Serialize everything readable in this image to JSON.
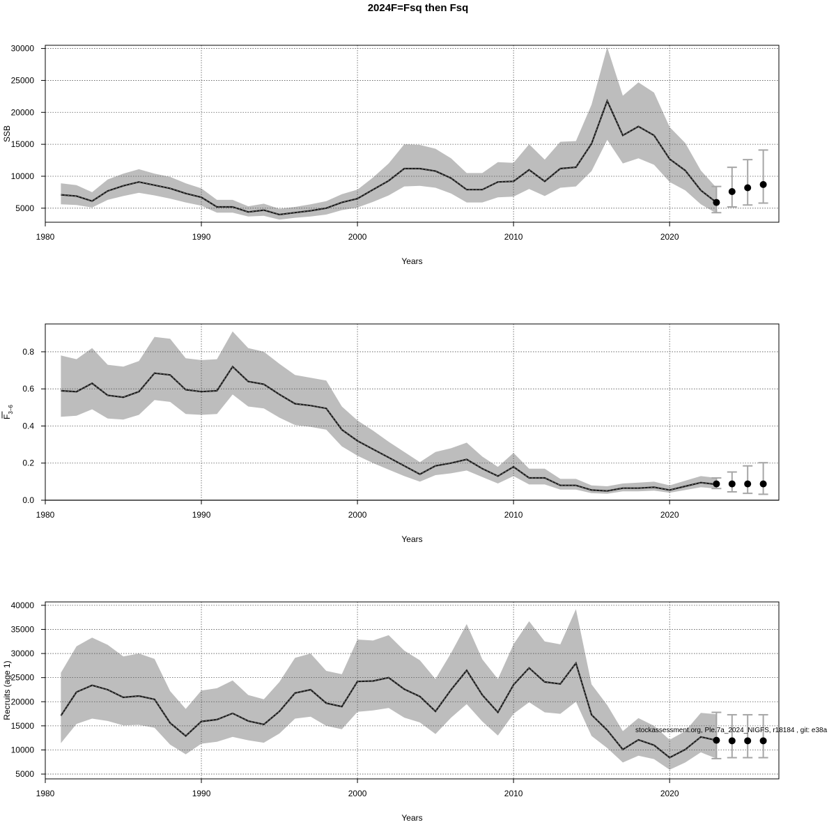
{
  "title": "2024F=Fsq then Fsq",
  "footnote": "stockassessment.org, Ple.7a_2024_NIGFS, r18184 , git: e38a",
  "chart_data": [
    {
      "type": "area",
      "panel": "ssb",
      "title": "",
      "xlabel": "Years",
      "ylabel": "SSB",
      "xlim": [
        1980,
        2027
      ],
      "ylim": [
        2800,
        30500
      ],
      "xticks": [
        1980,
        1990,
        2000,
        2010,
        2020
      ],
      "yticks": [
        5000,
        10000,
        15000,
        20000,
        25000,
        30000
      ],
      "grid": true,
      "x": [
        1981,
        1982,
        1983,
        1984,
        1985,
        1986,
        1987,
        1988,
        1989,
        1990,
        1991,
        1992,
        1993,
        1994,
        1995,
        1996,
        1997,
        1998,
        1999,
        2000,
        2001,
        2002,
        2003,
        2004,
        2005,
        2006,
        2007,
        2008,
        2009,
        2010,
        2011,
        2012,
        2013,
        2014,
        2015,
        2016,
        2017,
        2018,
        2019,
        2020,
        2021,
        2022,
        2023
      ],
      "estimate": [
        7100,
        6900,
        6100,
        7700,
        8500,
        9100,
        8600,
        8100,
        7300,
        6700,
        5200,
        5200,
        4400,
        4700,
        4000,
        4300,
        4600,
        5000,
        5900,
        6500,
        7900,
        9300,
        11200,
        11200,
        10800,
        9700,
        7900,
        7900,
        9100,
        9200,
        11000,
        9200,
        11200,
        11400,
        15100,
        21800,
        16400,
        17800,
        16400,
        12700,
        10900,
        7800,
        5900
      ],
      "lower": [
        5600,
        5500,
        5100,
        6300,
        6900,
        7400,
        7000,
        6500,
        5900,
        5400,
        4300,
        4300,
        3700,
        3800,
        3200,
        3500,
        3700,
        4000,
        4700,
        5100,
        6000,
        7000,
        8400,
        8500,
        8200,
        7300,
        5900,
        5900,
        6700,
        6800,
        8000,
        6900,
        8200,
        8400,
        10800,
        15700,
        12000,
        12800,
        11800,
        9100,
        7800,
        5600,
        4200
      ],
      "upper": [
        8900,
        8600,
        7500,
        9500,
        10400,
        11100,
        10400,
        9900,
        8900,
        8100,
        6300,
        6300,
        5300,
        5700,
        4900,
        5200,
        5600,
        6100,
        7200,
        7900,
        9800,
        12000,
        15000,
        14900,
        14300,
        12800,
        10500,
        10500,
        12200,
        12100,
        15000,
        12600,
        15400,
        15500,
        21200,
        30200,
        22600,
        24700,
        23100,
        17700,
        15200,
        10900,
        8200
      ],
      "forecast": {
        "x": [
          2023,
          2024,
          2025,
          2026
        ],
        "median": [
          5900,
          7600,
          8200,
          8700
        ],
        "lower": [
          4300,
          5200,
          5500,
          5800
        ],
        "upper": [
          8400,
          11400,
          12600,
          14100
        ]
      }
    },
    {
      "type": "area",
      "panel": "fbar",
      "title": "",
      "xlabel": "Years",
      "ylabel": "F",
      "ylabel_sub": "3−6",
      "xlim": [
        1980,
        2027
      ],
      "ylim": [
        0,
        0.95
      ],
      "xticks": [
        1980,
        1990,
        2000,
        2010,
        2020
      ],
      "yticks": [
        0.0,
        0.2,
        0.4,
        0.6,
        0.8
      ],
      "yticklabels": [
        "0.0",
        "0.2",
        "0.4",
        "0.6",
        "0.8"
      ],
      "grid": true,
      "x": [
        1981,
        1982,
        1983,
        1984,
        1985,
        1986,
        1987,
        1988,
        1989,
        1990,
        1991,
        1992,
        1993,
        1994,
        1995,
        1996,
        1997,
        1998,
        1999,
        2000,
        2001,
        2002,
        2003,
        2004,
        2005,
        2006,
        2007,
        2008,
        2009,
        2010,
        2011,
        2012,
        2013,
        2014,
        2015,
        2016,
        2017,
        2018,
        2019,
        2020,
        2021,
        2022,
        2023
      ],
      "estimate": [
        0.59,
        0.585,
        0.63,
        0.565,
        0.555,
        0.585,
        0.685,
        0.675,
        0.595,
        0.585,
        0.59,
        0.72,
        0.64,
        0.625,
        0.57,
        0.52,
        0.51,
        0.495,
        0.38,
        0.32,
        0.275,
        0.23,
        0.185,
        0.14,
        0.185,
        0.2,
        0.22,
        0.17,
        0.13,
        0.18,
        0.12,
        0.12,
        0.08,
        0.08,
        0.055,
        0.05,
        0.065,
        0.065,
        0.07,
        0.055,
        0.075,
        0.095,
        0.085
      ],
      "lower": [
        0.45,
        0.455,
        0.49,
        0.44,
        0.435,
        0.46,
        0.54,
        0.53,
        0.465,
        0.46,
        0.465,
        0.57,
        0.505,
        0.495,
        0.445,
        0.405,
        0.395,
        0.38,
        0.29,
        0.24,
        0.2,
        0.165,
        0.13,
        0.1,
        0.135,
        0.145,
        0.16,
        0.125,
        0.09,
        0.13,
        0.085,
        0.085,
        0.057,
        0.057,
        0.038,
        0.035,
        0.048,
        0.048,
        0.052,
        0.04,
        0.055,
        0.07,
        0.063
      ],
      "upper": [
        0.78,
        0.76,
        0.82,
        0.73,
        0.72,
        0.75,
        0.88,
        0.87,
        0.765,
        0.755,
        0.76,
        0.91,
        0.82,
        0.8,
        0.735,
        0.675,
        0.66,
        0.645,
        0.505,
        0.43,
        0.375,
        0.315,
        0.26,
        0.205,
        0.26,
        0.28,
        0.31,
        0.235,
        0.18,
        0.255,
        0.17,
        0.17,
        0.115,
        0.115,
        0.08,
        0.075,
        0.09,
        0.095,
        0.1,
        0.08,
        0.105,
        0.13,
        0.12
      ],
      "forecast": {
        "x": [
          2023,
          2024,
          2025,
          2026
        ],
        "median": [
          0.088,
          0.088,
          0.088,
          0.088
        ],
        "lower": [
          0.063,
          0.045,
          0.037,
          0.032
        ],
        "upper": [
          0.12,
          0.152,
          0.185,
          0.202
        ]
      }
    },
    {
      "type": "area",
      "panel": "recruits",
      "title": "",
      "xlabel": "Years",
      "ylabel": "Recruits (age 1)",
      "xlim": [
        1980,
        2027
      ],
      "ylim": [
        4000,
        40700
      ],
      "xticks": [
        1980,
        1990,
        2000,
        2010,
        2020
      ],
      "yticks": [
        5000,
        10000,
        15000,
        20000,
        25000,
        30000,
        35000,
        40000
      ],
      "grid": true,
      "x": [
        1981,
        1982,
        1983,
        1984,
        1985,
        1986,
        1987,
        1988,
        1989,
        1990,
        1991,
        1992,
        1993,
        1994,
        1995,
        1996,
        1997,
        1998,
        1999,
        2000,
        2001,
        2002,
        2003,
        2004,
        2005,
        2006,
        2007,
        2008,
        2009,
        2010,
        2011,
        2012,
        2013,
        2014,
        2015,
        2016,
        2017,
        2018,
        2019,
        2020,
        2021,
        2022,
        2023
      ],
      "estimate": [
        17100,
        22000,
        23400,
        22500,
        20900,
        21200,
        20500,
        15600,
        12900,
        15900,
        16300,
        17600,
        16000,
        15300,
        18000,
        21800,
        22500,
        19700,
        19000,
        24200,
        24300,
        25000,
        22600,
        21100,
        18000,
        22500,
        26500,
        21400,
        17800,
        23500,
        27000,
        24100,
        23700,
        28000,
        17300,
        14100,
        10100,
        12100,
        11000,
        8400,
        10100,
        12700,
        12000
      ],
      "lower": [
        11400,
        15400,
        16500,
        16000,
        15100,
        15200,
        14600,
        11100,
        9100,
        11300,
        11700,
        12700,
        12000,
        11500,
        13400,
        16500,
        16900,
        15000,
        14300,
        17900,
        18200,
        18700,
        16700,
        15700,
        13300,
        16700,
        19500,
        15900,
        13000,
        17500,
        19900,
        17800,
        17500,
        20000,
        12900,
        10400,
        7400,
        8800,
        8100,
        5900,
        7400,
        9500,
        8200
      ],
      "upper": [
        26000,
        31500,
        33300,
        31800,
        29400,
        30000,
        28900,
        22200,
        18500,
        22300,
        22800,
        24400,
        21400,
        20500,
        24100,
        29100,
        30000,
        26400,
        25700,
        32900,
        32700,
        33800,
        30600,
        28600,
        24700,
        30100,
        36100,
        28800,
        24700,
        31900,
        36700,
        32500,
        31900,
        39200,
        23600,
        19300,
        13900,
        16600,
        15000,
        12100,
        13900,
        17700,
        17400
      ],
      "forecast": {
        "x": [
          2023,
          2024,
          2025,
          2026
        ],
        "median": [
          12000,
          11900,
          11900,
          11900
        ],
        "lower": [
          8200,
          8400,
          8400,
          8400
        ],
        "upper": [
          17800,
          17300,
          17300,
          17300
        ]
      }
    }
  ]
}
